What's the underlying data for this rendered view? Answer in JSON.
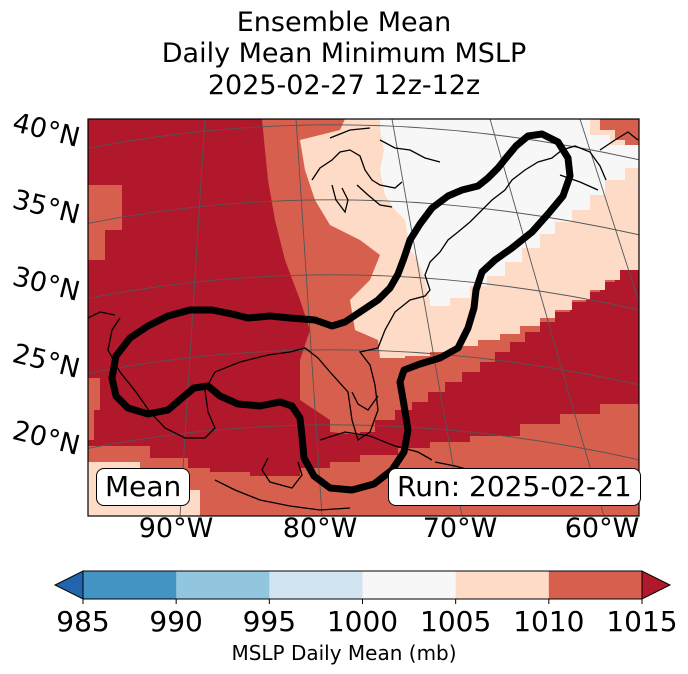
{
  "title": {
    "line1": "Ensemble Mean",
    "line2": "Daily Mean Minimum MSLP",
    "line3": "2025-02-27 12z-12z"
  },
  "map": {
    "lat_labels": [
      "40°N",
      "35°N",
      "30°N",
      "25°N",
      "20°N"
    ],
    "lon_labels": [
      "90°W",
      "80°W",
      "70°W",
      "60°W"
    ],
    "left_box": "Mean",
    "right_box": "Run: 2025-02-21",
    "fill_colors": {
      "le1000": "#f7f7f7",
      "b1000_1005": "#fddbc7",
      "b1005_1010": "#d6604d",
      "ge1010": "#b2182b"
    },
    "coastline_color": "#000000",
    "contour_color": "#000000",
    "grid_color": "#555555"
  },
  "colorbar": {
    "title": "MSLP Daily Mean (mb)",
    "ticks": [
      "985",
      "990",
      "995",
      "1000",
      "1005",
      "1010",
      "1015"
    ],
    "colors": [
      "#2166ac",
      "#4393c3",
      "#92c5de",
      "#d1e5f0",
      "#f7f7f7",
      "#fddbc7",
      "#d6604d",
      "#b2182b"
    ]
  }
}
